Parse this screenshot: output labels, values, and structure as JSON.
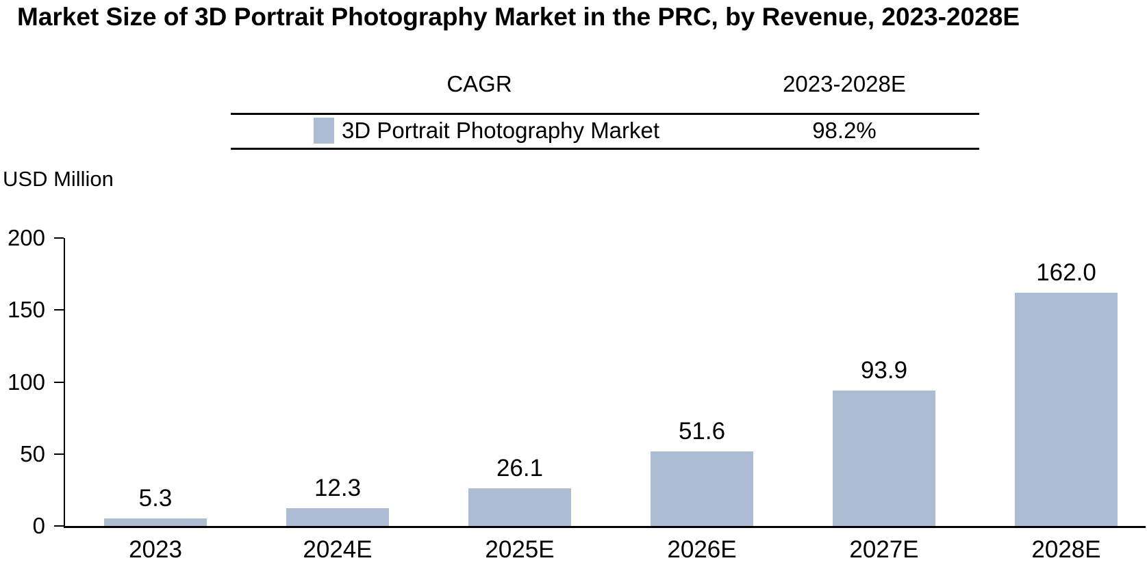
{
  "title": "Market Size of 3D Portrait Photography Market in the PRC, by Revenue, 2023-2028E",
  "cagr_table": {
    "header_label": "CAGR",
    "header_period": "2023-2028E",
    "row": {
      "label": "3D Portrait Photography Market",
      "value": "98.2%"
    }
  },
  "y_axis": {
    "title": "USD Million"
  },
  "colors": {
    "bar": "#ACBDD3",
    "axis": "#000000",
    "text": "#000000"
  },
  "chart_data": {
    "type": "bar",
    "title": "Market Size of 3D Portrait Photography Market in the PRC, by Revenue, 2023-2028E",
    "series_name": "3D Portrait Photography Market",
    "categories": [
      "2023",
      "2024E",
      "2025E",
      "2026E",
      "2027E",
      "2028E"
    ],
    "values": [
      5.3,
      12.3,
      26.1,
      51.6,
      93.9,
      162.0
    ],
    "data_labels": [
      "5.3",
      "12.3",
      "26.1",
      "51.6",
      "93.9",
      "162.0"
    ],
    "cagr": {
      "period": "2023-2028E",
      "value": "98.2%"
    },
    "xlabel": "",
    "ylabel": "USD Million",
    "ylim": [
      0,
      200
    ],
    "yticks": [
      0,
      50,
      100,
      150,
      200
    ],
    "grid": false,
    "bar_color": "#ACBDD3",
    "legend_position": "top-table"
  }
}
